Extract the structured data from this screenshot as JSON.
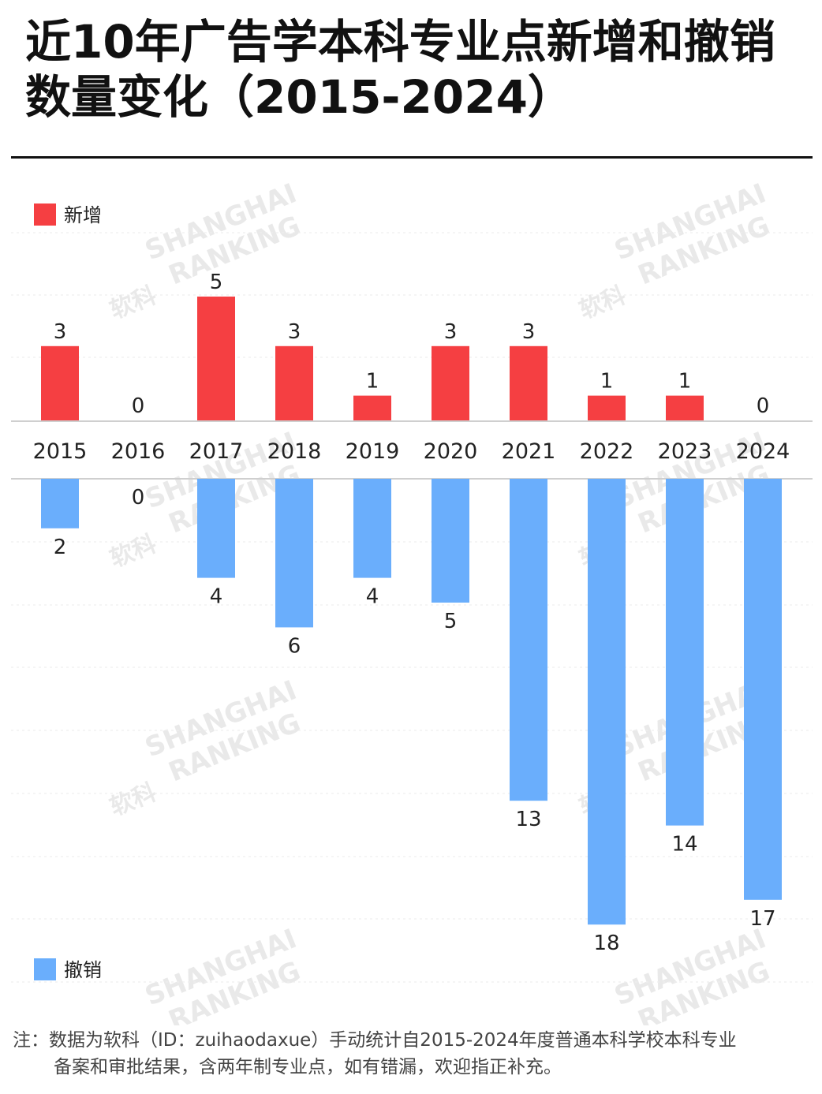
{
  "title_line1": "近10年广告学本科专业点新增和撤销",
  "title_line2": "数量变化（2015-2024）",
  "watermark": [
    "SHANGHAI",
    "RANKING",
    "软科"
  ],
  "note_line1": "注：数据为软科（ID：zuihaodaxue）手动统计自2015-2024年度普通本科学校本科专业",
  "note_line2": "备案和审批结果，含两年制专业点，如有错漏，欢迎指正补充。",
  "colors": {
    "added": "#f53f42",
    "removed": "#6aaefc",
    "grid": "#dddddd"
  },
  "chart_data": {
    "type": "bar",
    "categories": [
      "2015",
      "2016",
      "2017",
      "2018",
      "2019",
      "2020",
      "2021",
      "2022",
      "2023",
      "2024"
    ],
    "series": [
      {
        "name": "新增",
        "values": [
          3,
          0,
          5,
          3,
          1,
          3,
          3,
          1,
          1,
          0
        ]
      },
      {
        "name": "撤销",
        "values": [
          2,
          0,
          4,
          6,
          4,
          5,
          13,
          18,
          14,
          17
        ]
      }
    ],
    "legend": [
      "新增",
      "撤销"
    ],
    "layout": "diverging: 新增 above the year axis, 撤销 below",
    "grid": true
  }
}
